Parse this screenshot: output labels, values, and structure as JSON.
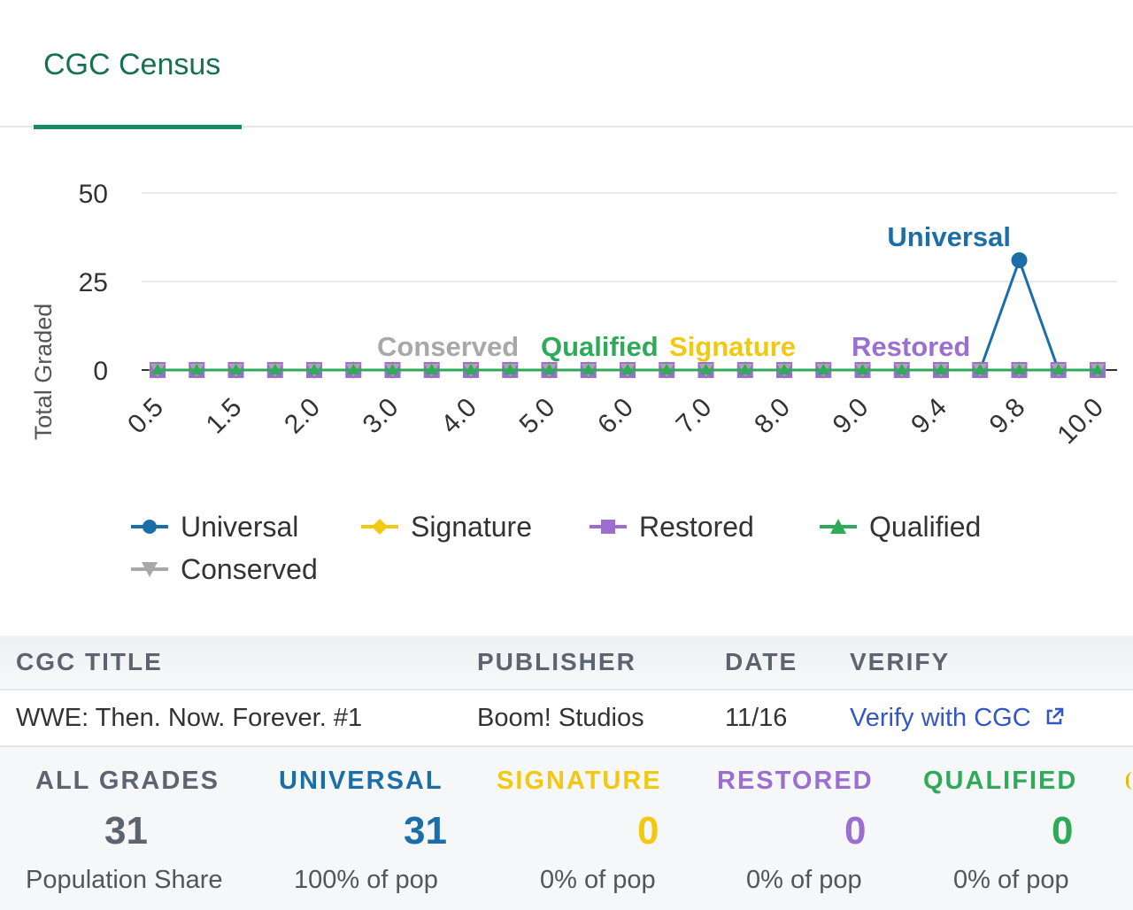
{
  "tab": {
    "label": "CGC Census"
  },
  "colors": {
    "universal": "#1b6fa8",
    "signature": "#f2c811",
    "restored": "#9b6fd0",
    "qualified": "#2eaa58",
    "conserved": "#a8a8a8",
    "tab_accent": "#1a8a5e",
    "link": "#3356c9"
  },
  "chart_data": {
    "type": "line",
    "ylabel": "Total Graded",
    "xlabel": "",
    "ylim": [
      0,
      50
    ],
    "yticks": [
      0,
      25,
      50
    ],
    "grid": true,
    "legend_position": "bottom",
    "categories": [
      "0.5",
      "1.0",
      "1.5",
      "1.8",
      "2.0",
      "2.5",
      "3.0",
      "3.5",
      "4.0",
      "4.5",
      "5.0",
      "5.5",
      "6.0",
      "6.5",
      "7.0",
      "7.5",
      "8.0",
      "8.5",
      "9.0",
      "9.2",
      "9.4",
      "9.6",
      "9.8",
      "9.9",
      "10.0"
    ],
    "xtick_labels": [
      "0.5",
      "1.5",
      "2.0",
      "3.0",
      "4.0",
      "5.0",
      "6.0",
      "7.0",
      "8.0",
      "9.0",
      "9.4",
      "9.8",
      "10.0"
    ],
    "series": [
      {
        "name": "Universal",
        "color": "#1b6fa8",
        "marker": "circle",
        "values": [
          0,
          0,
          0,
          0,
          0,
          0,
          0,
          0,
          0,
          0,
          0,
          0,
          0,
          0,
          0,
          0,
          0,
          0,
          0,
          0,
          0,
          0,
          31,
          0,
          0
        ]
      },
      {
        "name": "Signature",
        "color": "#f2c811",
        "marker": "diamond",
        "values": [
          0,
          0,
          0,
          0,
          0,
          0,
          0,
          0,
          0,
          0,
          0,
          0,
          0,
          0,
          0,
          0,
          0,
          0,
          0,
          0,
          0,
          0,
          0,
          0,
          0
        ]
      },
      {
        "name": "Restored",
        "color": "#9b6fd0",
        "marker": "square",
        "values": [
          0,
          0,
          0,
          0,
          0,
          0,
          0,
          0,
          0,
          0,
          0,
          0,
          0,
          0,
          0,
          0,
          0,
          0,
          0,
          0,
          0,
          0,
          0,
          0,
          0
        ]
      },
      {
        "name": "Qualified",
        "color": "#2eaa58",
        "marker": "triangle",
        "values": [
          0,
          0,
          0,
          0,
          0,
          0,
          0,
          0,
          0,
          0,
          0,
          0,
          0,
          0,
          0,
          0,
          0,
          0,
          0,
          0,
          0,
          0,
          0,
          0,
          0
        ]
      },
      {
        "name": "Conserved",
        "color": "#a8a8a8",
        "marker": "triangle-down",
        "values": [
          0,
          0,
          0,
          0,
          0,
          0,
          0,
          0,
          0,
          0,
          0,
          0,
          0,
          0,
          0,
          0,
          0,
          0,
          0,
          0,
          0,
          0,
          0,
          0,
          0
        ]
      }
    ],
    "annotations": [
      "Universal",
      "Conserved",
      "Qualified",
      "Signature",
      "Restored"
    ]
  },
  "legend": [
    {
      "label": "Universal",
      "marker": "circle"
    },
    {
      "label": "Signature",
      "marker": "diamond"
    },
    {
      "label": "Restored",
      "marker": "square"
    },
    {
      "label": "Qualified",
      "marker": "triangle"
    },
    {
      "label": "Conserved",
      "marker": "triangle-down"
    }
  ],
  "table": {
    "headers": {
      "title": "CGC TITLE",
      "publisher": "PUBLISHER",
      "date": "DATE",
      "verify": "VERIFY"
    },
    "row": {
      "title": "WWE: Then. Now. Forever. #1",
      "publisher": "Boom! Studios",
      "date": "11/16",
      "verify_label": "Verify with CGC",
      "verify_icon": "external-link-icon"
    }
  },
  "stats": {
    "all": {
      "label": "ALL GRADES",
      "count": "31",
      "share": "Population Share"
    },
    "universal": {
      "label": "UNIVERSAL",
      "count": "31",
      "share": "100% of pop"
    },
    "signature": {
      "label": "SIGNATURE",
      "count": "0",
      "share": "0% of pop"
    },
    "restored": {
      "label": "RESTORED",
      "count": "0",
      "share": "0% of pop"
    },
    "qualified": {
      "label": "QUALIFIED",
      "count": "0",
      "share": "0% of pop"
    }
  }
}
